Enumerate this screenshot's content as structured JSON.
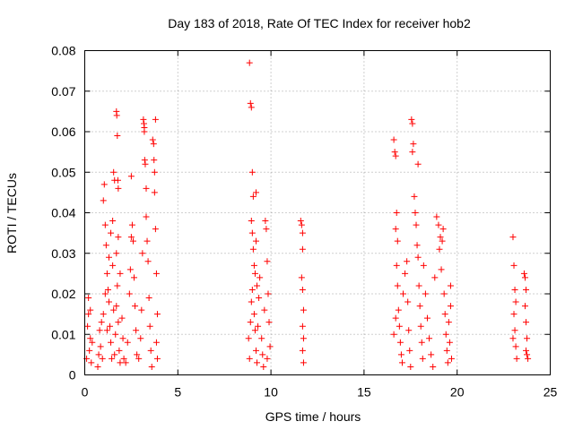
{
  "chart_data": {
    "type": "scatter",
    "title": "Day 183 of 2018, Rate Of TEC Index for receiver hob2",
    "xlabel": "GPS time / hours",
    "ylabel": "ROTI / TECUs",
    "xlim": [
      0,
      25
    ],
    "ylim": [
      0,
      0.08
    ],
    "xticks": [
      0,
      5,
      10,
      15,
      20,
      25
    ],
    "yticks": [
      0,
      0.01,
      0.02,
      0.03,
      0.04,
      0.05,
      0.06,
      0.07,
      0.08
    ],
    "ytick_labels": [
      "0",
      "0.01",
      "0.02",
      "0.03",
      "0.04",
      "0.05",
      "0.06",
      "0.07",
      "0.08"
    ],
    "grid": true,
    "marker": "+",
    "color": "#ff0000",
    "series": [
      {
        "points": [
          [
            0.1,
            0.004
          ],
          [
            0.15,
            0.012
          ],
          [
            0.2,
            0.019
          ],
          [
            0.25,
            0.006
          ],
          [
            0.3,
            0.009
          ],
          [
            0.35,
            0.003
          ],
          [
            0.4,
            0.008
          ],
          [
            0.2,
            0.015
          ],
          [
            0.3,
            0.016
          ],
          [
            0.7,
            0.002
          ],
          [
            0.75,
            0.005
          ],
          [
            0.8,
            0.011
          ],
          [
            0.85,
            0.007
          ],
          [
            0.9,
            0.013
          ],
          [
            0.95,
            0.004
          ],
          [
            1.0,
            0.043
          ],
          [
            1.05,
            0.047
          ],
          [
            1.1,
            0.037
          ],
          [
            1.15,
            0.032
          ],
          [
            1.2,
            0.025
          ],
          [
            1.25,
            0.021
          ],
          [
            1.3,
            0.018
          ],
          [
            1.35,
            0.012
          ],
          [
            1.4,
            0.008
          ],
          [
            1.45,
            0.004
          ],
          [
            1.0,
            0.015
          ],
          [
            1.1,
            0.02
          ],
          [
            1.2,
            0.011
          ],
          [
            1.3,
            0.029
          ],
          [
            1.4,
            0.035
          ],
          [
            1.5,
            0.038
          ],
          [
            1.55,
            0.05
          ],
          [
            1.6,
            0.048
          ],
          [
            1.5,
            0.027
          ],
          [
            1.55,
            0.016
          ],
          [
            1.7,
            0.065
          ],
          [
            1.72,
            0.064
          ],
          [
            1.75,
            0.059
          ],
          [
            1.78,
            0.048
          ],
          [
            1.8,
            0.046
          ],
          [
            1.7,
            0.03
          ],
          [
            1.75,
            0.022
          ],
          [
            1.8,
            0.013
          ],
          [
            1.85,
            0.006
          ],
          [
            1.9,
            0.003
          ],
          [
            1.65,
            0.01
          ],
          [
            1.6,
            0.005
          ],
          [
            1.7,
            0.017
          ],
          [
            1.8,
            0.034
          ],
          [
            1.9,
            0.025
          ],
          [
            2.0,
            0.014
          ],
          [
            2.05,
            0.009
          ],
          [
            2.1,
            0.004
          ],
          [
            2.2,
            0.003
          ],
          [
            2.3,
            0.008
          ],
          [
            2.4,
            0.02
          ],
          [
            2.45,
            0.026
          ],
          [
            2.5,
            0.034
          ],
          [
            2.55,
            0.037
          ],
          [
            2.5,
            0.049
          ],
          [
            2.6,
            0.033
          ],
          [
            2.65,
            0.024
          ],
          [
            2.7,
            0.017
          ],
          [
            2.75,
            0.011
          ],
          [
            2.8,
            0.005
          ],
          [
            2.9,
            0.004
          ],
          [
            3.0,
            0.009
          ],
          [
            3.05,
            0.016
          ],
          [
            3.1,
            0.03
          ],
          [
            3.15,
            0.063
          ],
          [
            3.18,
            0.062
          ],
          [
            3.2,
            0.061
          ],
          [
            3.2,
            0.06
          ],
          [
            3.22,
            0.053
          ],
          [
            3.25,
            0.052
          ],
          [
            3.3,
            0.046
          ],
          [
            3.3,
            0.039
          ],
          [
            3.35,
            0.033
          ],
          [
            3.4,
            0.028
          ],
          [
            3.45,
            0.019
          ],
          [
            3.5,
            0.012
          ],
          [
            3.55,
            0.006
          ],
          [
            3.6,
            0.002
          ],
          [
            3.65,
            0.058
          ],
          [
            3.7,
            0.057
          ],
          [
            3.72,
            0.053
          ],
          [
            3.75,
            0.05
          ],
          [
            3.8,
            0.063
          ],
          [
            3.75,
            0.045
          ],
          [
            3.8,
            0.036
          ],
          [
            3.85,
            0.025
          ],
          [
            3.9,
            0.015
          ],
          [
            3.85,
            0.008
          ],
          [
            3.9,
            0.004
          ],
          [
            8.85,
            0.077
          ],
          [
            8.9,
            0.067
          ],
          [
            8.95,
            0.066
          ],
          [
            9.0,
            0.05
          ],
          [
            9.05,
            0.044
          ],
          [
            8.95,
            0.038
          ],
          [
            9.0,
            0.035
          ],
          [
            9.05,
            0.031
          ],
          [
            9.1,
            0.027
          ],
          [
            9.15,
            0.025
          ],
          [
            9.2,
            0.045
          ],
          [
            9.2,
            0.033
          ],
          [
            9.25,
            0.022
          ],
          [
            8.8,
            0.009
          ],
          [
            8.85,
            0.004
          ],
          [
            8.9,
            0.013
          ],
          [
            8.95,
            0.018
          ],
          [
            9.0,
            0.021
          ],
          [
            9.1,
            0.015
          ],
          [
            9.15,
            0.011
          ],
          [
            9.2,
            0.006
          ],
          [
            9.25,
            0.003
          ],
          [
            9.3,
            0.012
          ],
          [
            9.35,
            0.019
          ],
          [
            9.4,
            0.024
          ],
          [
            9.5,
            0.009
          ],
          [
            9.55,
            0.005
          ],
          [
            9.6,
            0.002
          ],
          [
            9.65,
            0.016
          ],
          [
            9.7,
            0.038
          ],
          [
            9.75,
            0.036
          ],
          [
            9.8,
            0.028
          ],
          [
            9.85,
            0.02
          ],
          [
            9.9,
            0.013
          ],
          [
            9.95,
            0.007
          ],
          [
            9.8,
            0.004
          ],
          [
            11.6,
            0.038
          ],
          [
            11.65,
            0.037
          ],
          [
            11.7,
            0.035
          ],
          [
            11.7,
            0.031
          ],
          [
            11.65,
            0.024
          ],
          [
            11.7,
            0.021
          ],
          [
            11.75,
            0.016
          ],
          [
            11.7,
            0.012
          ],
          [
            11.75,
            0.009
          ],
          [
            11.7,
            0.006
          ],
          [
            11.75,
            0.003
          ],
          [
            16.6,
            0.058
          ],
          [
            16.65,
            0.055
          ],
          [
            16.7,
            0.054
          ],
          [
            16.75,
            0.04
          ],
          [
            16.7,
            0.036
          ],
          [
            16.8,
            0.033
          ],
          [
            16.75,
            0.027
          ],
          [
            16.8,
            0.022
          ],
          [
            16.85,
            0.016
          ],
          [
            16.9,
            0.012
          ],
          [
            16.95,
            0.008
          ],
          [
            17.0,
            0.005
          ],
          [
            17.05,
            0.003
          ],
          [
            16.6,
            0.01
          ],
          [
            16.7,
            0.014
          ],
          [
            17.1,
            0.02
          ],
          [
            17.2,
            0.025
          ],
          [
            17.3,
            0.028
          ],
          [
            17.35,
            0.018
          ],
          [
            17.4,
            0.011
          ],
          [
            17.45,
            0.006
          ],
          [
            17.5,
            0.002
          ],
          [
            17.55,
            0.063
          ],
          [
            17.6,
            0.062
          ],
          [
            17.65,
            0.057
          ],
          [
            17.6,
            0.055
          ],
          [
            17.7,
            0.044
          ],
          [
            17.75,
            0.04
          ],
          [
            17.8,
            0.037
          ],
          [
            17.85,
            0.032
          ],
          [
            17.9,
            0.052
          ],
          [
            17.9,
            0.029
          ],
          [
            17.95,
            0.022
          ],
          [
            18.0,
            0.017
          ],
          [
            18.05,
            0.012
          ],
          [
            18.1,
            0.008
          ],
          [
            18.15,
            0.004
          ],
          [
            18.2,
            0.027
          ],
          [
            18.3,
            0.02
          ],
          [
            18.4,
            0.014
          ],
          [
            18.5,
            0.009
          ],
          [
            18.6,
            0.005
          ],
          [
            18.7,
            0.002
          ],
          [
            18.8,
            0.024
          ],
          [
            18.9,
            0.039
          ],
          [
            19.0,
            0.037
          ],
          [
            19.05,
            0.031
          ],
          [
            19.1,
            0.034
          ],
          [
            19.2,
            0.033
          ],
          [
            19.25,
            0.036
          ],
          [
            19.15,
            0.026
          ],
          [
            19.3,
            0.02
          ],
          [
            19.35,
            0.015
          ],
          [
            19.4,
            0.01
          ],
          [
            19.45,
            0.006
          ],
          [
            19.5,
            0.003
          ],
          [
            19.55,
            0.013
          ],
          [
            19.6,
            0.008
          ],
          [
            19.65,
            0.017
          ],
          [
            19.7,
            0.004
          ],
          [
            19.65,
            0.022
          ],
          [
            23.0,
            0.034
          ],
          [
            23.05,
            0.027
          ],
          [
            23.1,
            0.021
          ],
          [
            23.15,
            0.018
          ],
          [
            23.05,
            0.015
          ],
          [
            23.1,
            0.011
          ],
          [
            23.15,
            0.007
          ],
          [
            23.2,
            0.004
          ],
          [
            23.0,
            0.009
          ],
          [
            23.6,
            0.025
          ],
          [
            23.65,
            0.024
          ],
          [
            23.7,
            0.021
          ],
          [
            23.65,
            0.017
          ],
          [
            23.7,
            0.013
          ],
          [
            23.75,
            0.009
          ],
          [
            23.7,
            0.006
          ],
          [
            23.75,
            0.005
          ],
          [
            23.8,
            0.004
          ]
        ]
      }
    ]
  }
}
